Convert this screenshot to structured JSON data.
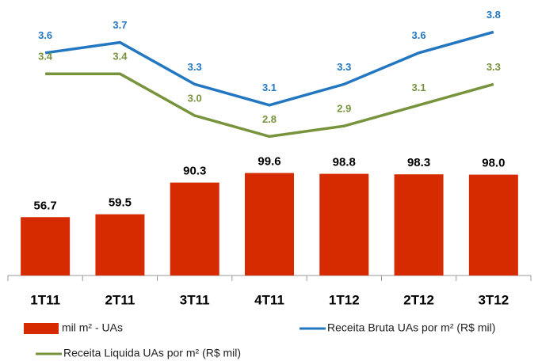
{
  "chart_data": {
    "type": "bar",
    "categories": [
      "1T11",
      "2T11",
      "3T11",
      "4T11",
      "1T12",
      "2T12",
      "3T12"
    ],
    "series": [
      {
        "name": "mil m² - UAs",
        "color": "#d62a00",
        "values": [
          56.7,
          59.5,
          90.3,
          99.6,
          98.8,
          98.3,
          98.0
        ],
        "value_labels": [
          "56.7",
          "59.5",
          "90.3",
          "99.6",
          "98.8",
          "98.3",
          "98.0"
        ]
      },
      {
        "name": "Receita Bruta UAs por m² (R$ mil)",
        "color": "#2277c0",
        "axis": "y2",
        "type": "line",
        "values": [
          3.6,
          3.7,
          3.3,
          3.1,
          3.3,
          3.6,
          3.8
        ]
      },
      {
        "name": "Receita Liquida UAs por m² (R$ mil)",
        "color": "#77933c",
        "axis": "y2",
        "type": "line",
        "values": [
          3.4,
          3.4,
          3.0,
          2.8,
          2.9,
          3.1,
          3.3
        ],
        "value_labels": [
          "3.4",
          "3.4",
          "3.0",
          "2.8",
          "2.9",
          "3.1",
          "3.3"
        ]
      }
    ],
    "ylim": [
      0,
      100
    ],
    "y2lim": [
      2,
      4
    ]
  }
}
